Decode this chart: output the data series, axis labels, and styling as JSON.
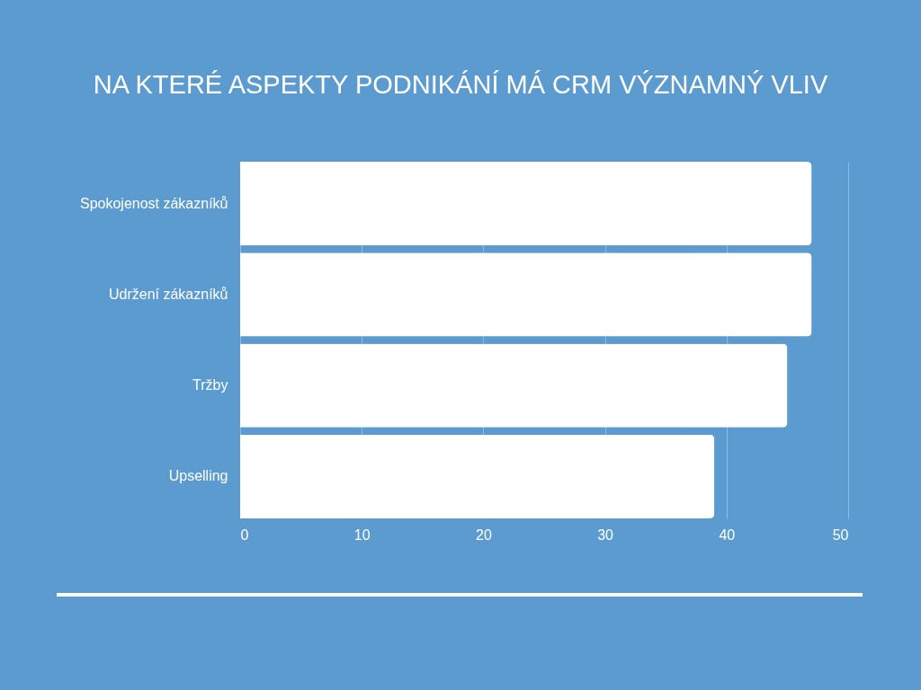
{
  "chart_data": {
    "type": "bar",
    "orientation": "horizontal",
    "title": "NA KTERÉ ASPEKTY PODNIKÁNÍ MÁ CRM VÝZNAMNÝ VLIV",
    "categories": [
      "Spokojenost zákazníků",
      "Udržení zákazníků",
      "Tržby",
      "Upselling"
    ],
    "values": [
      47,
      47,
      45,
      39
    ],
    "color": "#ffffff",
    "xlim": [
      0,
      50
    ],
    "xticks": [
      0,
      10,
      20,
      30,
      40,
      50
    ],
    "grid": "x"
  }
}
